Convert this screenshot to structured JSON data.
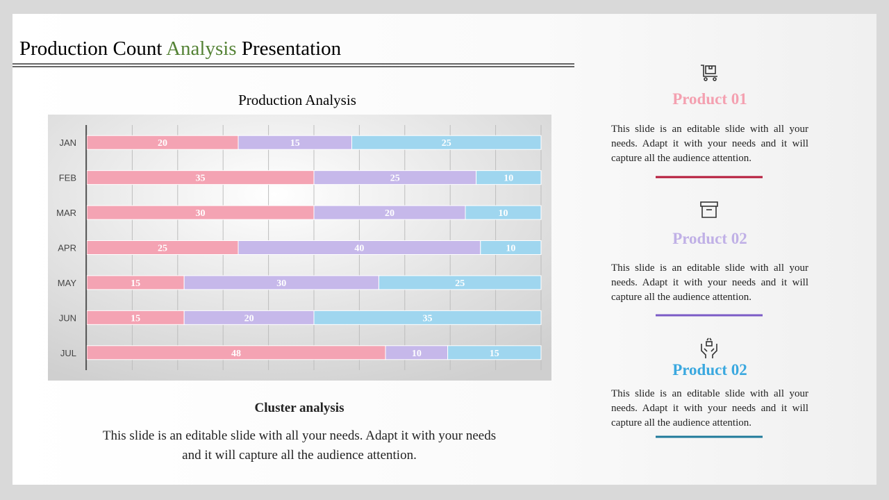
{
  "header": {
    "title_start": "Production Count",
    "title_highlight": "Analysis",
    "title_end": "Presentation"
  },
  "chart_data": {
    "type": "bar",
    "orientation": "horizontal",
    "stacking": "percent",
    "title": "Production Analysis",
    "categories": [
      "JAN",
      "FEB",
      "MAR",
      "APR",
      "MAY",
      "JUN",
      "JUL"
    ],
    "series": [
      {
        "color": "#f4a3b3",
        "values": [
          20,
          35,
          30,
          25,
          15,
          15,
          48
        ]
      },
      {
        "color": "#c6b8ea",
        "values": [
          15,
          25,
          20,
          40,
          30,
          20,
          10
        ]
      },
      {
        "color": "#9fd6ef",
        "values": [
          25,
          10,
          10,
          10,
          25,
          35,
          15
        ]
      }
    ],
    "xlim": [
      0,
      100
    ],
    "xticks": [
      0,
      10,
      20,
      30,
      40,
      50,
      60,
      70,
      80,
      90,
      100
    ],
    "grid": true
  },
  "summary": {
    "heading": "Cluster analysis",
    "text": "This slide is an editable slide with all your needs. Adapt it with your needs and it will capture all the audience attention."
  },
  "products": [
    {
      "title": "Product 01",
      "text": "This slide is an editable slide with all your needs. Adapt it with your needs and it will capture all the audience attention."
    },
    {
      "title": "Product 02",
      "text": "This slide is an editable slide with all your needs. Adapt it with your needs and it will capture all the audience attention."
    },
    {
      "title": "Product 02",
      "text": "This slide is an editable slide with all your needs. Adapt it with your needs and it will capture all the audience attention."
    }
  ]
}
